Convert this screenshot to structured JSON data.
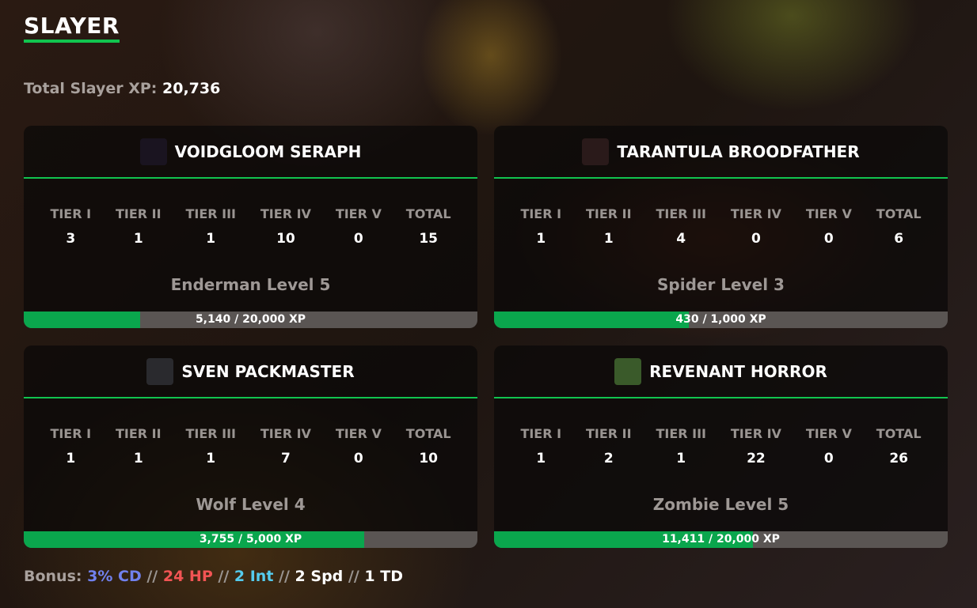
{
  "title": "SLAYER",
  "total_label": "Total Slayer XP:",
  "total_value": "20,736",
  "tier_labels": [
    "TIER I",
    "TIER II",
    "TIER III",
    "TIER IV",
    "TIER V",
    "TOTAL"
  ],
  "cards": [
    {
      "name": "VOIDGLOOM SERAPH",
      "icon": "enderman-head-icon",
      "icon_color": "#1a1420",
      "tiers": [
        "3",
        "1",
        "1",
        "10",
        "0",
        "15"
      ],
      "level": "Enderman Level 5",
      "xp": "5,140 / 20,000 XP",
      "progress": 0.257
    },
    {
      "name": "TARANTULA BROODFATHER",
      "icon": "spider-head-icon",
      "icon_color": "#2a1a1a",
      "tiers": [
        "1",
        "1",
        "4",
        "0",
        "0",
        "6"
      ],
      "level": "Spider Level 3",
      "xp": "430 / 1,000 XP",
      "progress": 0.43
    },
    {
      "name": "SVEN PACKMASTER",
      "icon": "wolf-head-icon",
      "icon_color": "#2a2a2e",
      "tiers": [
        "1",
        "1",
        "1",
        "7",
        "0",
        "10"
      ],
      "level": "Wolf Level 4",
      "xp": "3,755 / 5,000 XP",
      "progress": 0.751
    },
    {
      "name": "REVENANT HORROR",
      "icon": "zombie-head-icon",
      "icon_color": "#3a5a2a",
      "tiers": [
        "1",
        "2",
        "1",
        "22",
        "0",
        "26"
      ],
      "level": "Zombie Level 5",
      "xp": "11,411 / 20,000 XP",
      "progress": 0.5706
    }
  ],
  "bonus": {
    "label": "Bonus:",
    "sep": "//",
    "items": [
      {
        "text": "3% CD",
        "color": "#7181ee"
      },
      {
        "text": "24 HP",
        "color": "#f25454"
      },
      {
        "text": "2 Int",
        "color": "#55ccee"
      },
      {
        "text": "2 Spd",
        "color": "#ffffff"
      },
      {
        "text": "1 TD",
        "color": "#ffffff"
      }
    ]
  }
}
